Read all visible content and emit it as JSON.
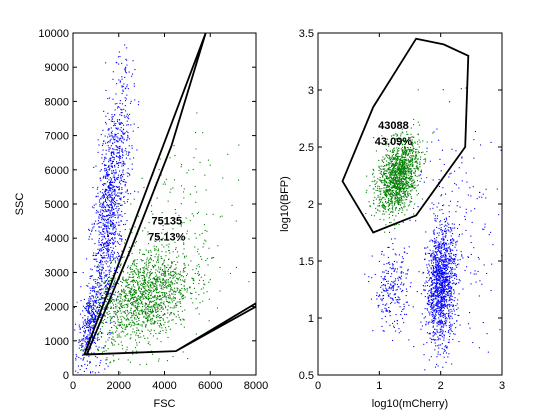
{
  "chart_data": [
    {
      "type": "scatter",
      "title": "",
      "xlabel": "FSC",
      "ylabel": "SSC",
      "xlim": [
        0,
        8000
      ],
      "ylim": [
        0,
        10000
      ],
      "xticks": [
        "0",
        "2000",
        "4000",
        "6000",
        "8000"
      ],
      "yticks": [
        "0",
        "1000",
        "2000",
        "3000",
        "4000",
        "5000",
        "6000",
        "7000",
        "8000",
        "9000",
        "10000"
      ],
      "series": [
        {
          "color": "#0000ff",
          "clusters": [
            {
              "cx": 1600,
              "cy": 4800,
              "sx": 450,
              "sy": 1500,
              "n": 1300,
              "slope": 2.9
            },
            {
              "cx": 700,
              "cy": 1500,
              "sx": 250,
              "sy": 500,
              "n": 350,
              "slope": 1.5
            }
          ]
        },
        {
          "color": "#008000",
          "clusters": [
            {
              "cx": 3100,
              "cy": 2300,
              "sx": 1000,
              "sy": 650,
              "n": 1400,
              "slope": 0.25
            },
            {
              "cx": 4400,
              "cy": 3800,
              "sx": 1200,
              "sy": 1400,
              "n": 250,
              "slope": 0
            }
          ]
        }
      ],
      "gate": {
        "polygon": [
          [
            500,
            600
          ],
          [
            4500,
            700
          ],
          [
            8000,
            2100
          ],
          [
            8000,
            2000
          ],
          [
            4500,
            700
          ],
          [
            600,
            600
          ],
          [
            2600,
            3800
          ],
          [
            4300,
            6700
          ],
          [
            5800,
            10000
          ]
        ],
        "count": "75135",
        "percent": "75.13%",
        "label_pos": [
          4100,
          4400
        ]
      }
    },
    {
      "type": "scatter",
      "title": "",
      "xlabel": "log10(mCherry)",
      "ylabel": "log10(BFP)",
      "xlim": [
        0,
        3
      ],
      "ylim": [
        0.5,
        3.5
      ],
      "xticks": [
        "0",
        "1",
        "2",
        "3"
      ],
      "yticks": [
        "0.5",
        "1",
        "1.5",
        "2",
        "2.5",
        "3",
        "3.5"
      ],
      "series": [
        {
          "color": "#0000ff",
          "clusters": [
            {
              "cx": 2.0,
              "cy": 1.3,
              "sx": 0.12,
              "sy": 0.25,
              "n": 1300,
              "slope": 0.3
            },
            {
              "cx": 1.2,
              "cy": 1.25,
              "sx": 0.15,
              "sy": 0.18,
              "n": 250,
              "slope": 0
            },
            {
              "cx": 2.3,
              "cy": 1.7,
              "sx": 0.35,
              "sy": 0.55,
              "n": 200,
              "slope": 0
            }
          ]
        },
        {
          "color": "#008000",
          "clusters": [
            {
              "cx": 1.3,
              "cy": 2.25,
              "sx": 0.17,
              "sy": 0.15,
              "n": 1400,
              "slope": 0.35
            }
          ]
        }
      ],
      "gate": {
        "polygon": [
          [
            0.4,
            2.2
          ],
          [
            0.9,
            2.85
          ],
          [
            1.6,
            3.45
          ],
          [
            2.05,
            3.4
          ],
          [
            2.45,
            3.3
          ],
          [
            2.4,
            2.5
          ],
          [
            1.6,
            1.9
          ],
          [
            0.9,
            1.75
          ]
        ],
        "count": "43088",
        "percent": "43.09%",
        "label_pos": [
          1.23,
          2.66
        ]
      }
    }
  ]
}
